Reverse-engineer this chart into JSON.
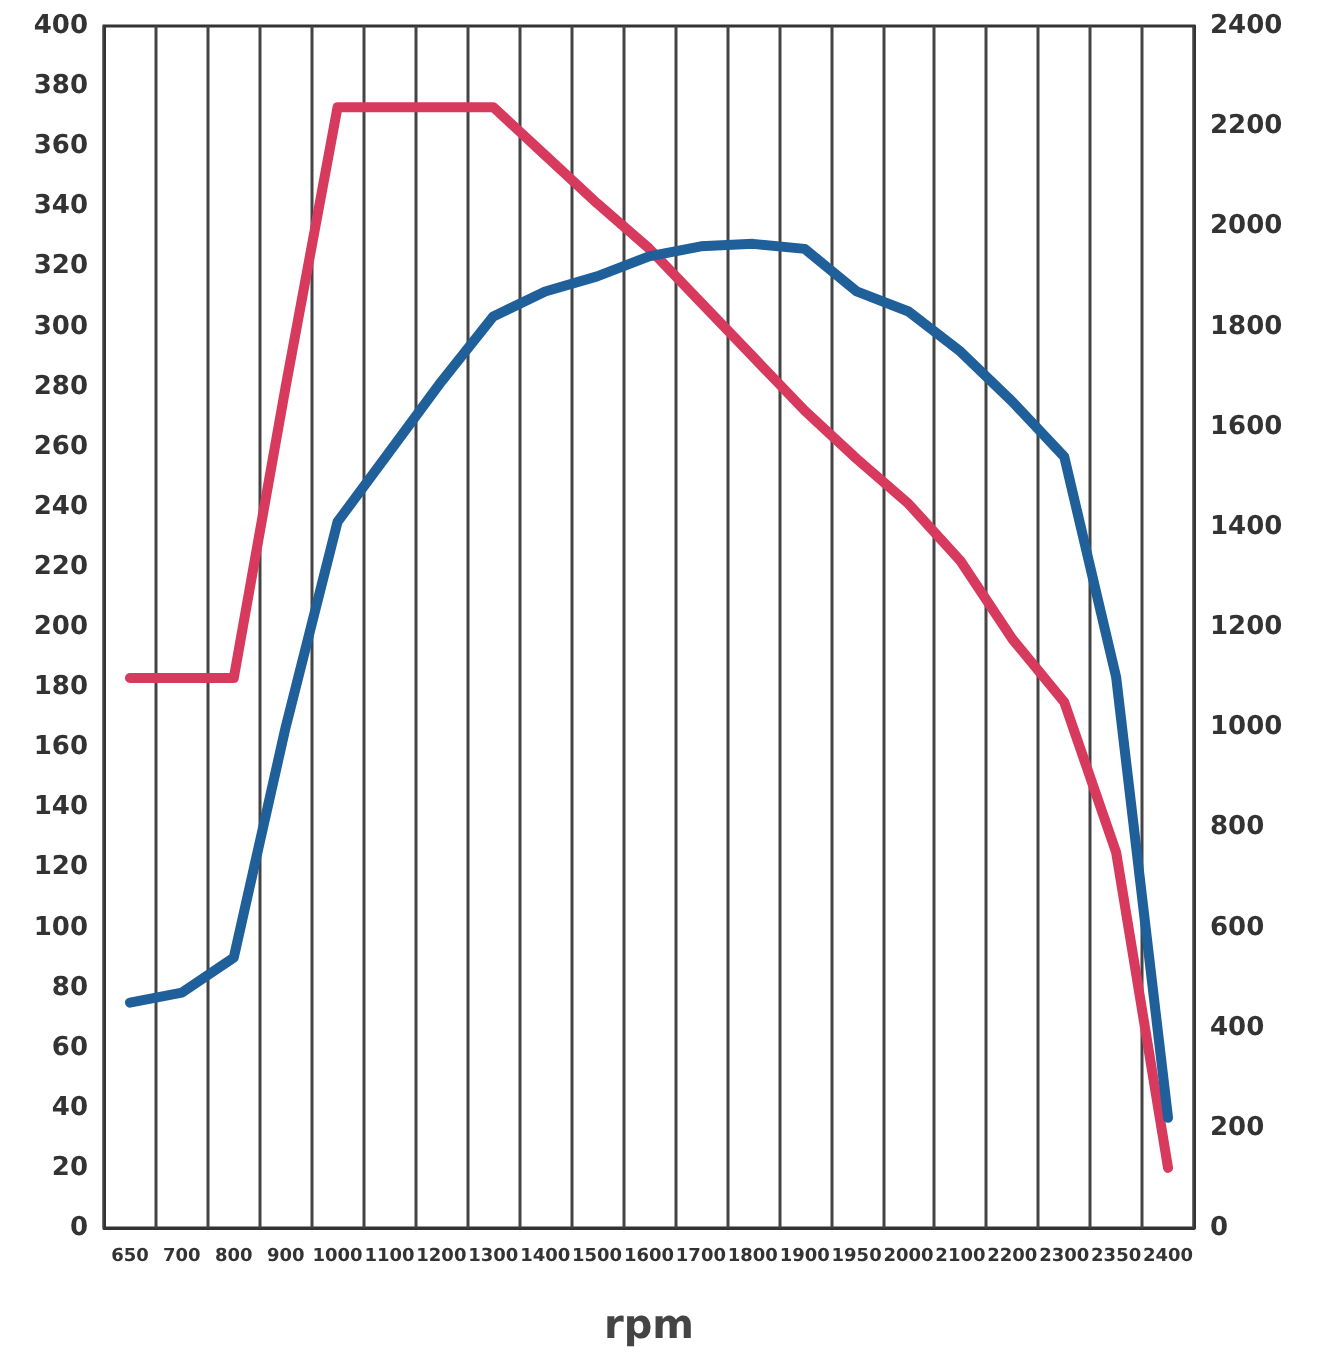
{
  "chart_data": {
    "type": "line",
    "xlabel": "rpm",
    "categories": [
      "650",
      "700",
      "800",
      "900",
      "1000",
      "1100",
      "1200",
      "1300",
      "1400",
      "1500",
      "1600",
      "1700",
      "1800",
      "1900",
      "1950",
      "2000",
      "2100",
      "2200",
      "2300",
      "2350",
      "2400"
    ],
    "series": [
      {
        "color": "#d83a5e",
        "values": [
          183,
          183,
          183,
          280,
          373,
          373,
          373,
          373,
          357,
          341,
          326,
          308,
          290,
          272,
          256,
          241,
          222,
          196,
          175,
          125,
          20
        ]
      },
      {
        "color": "#1f5f9a",
        "axis": "y2",
        "values": [
          450,
          470,
          540,
          1000,
          1410,
          1550,
          1690,
          1820,
          1870,
          1900,
          1940,
          1960,
          1965,
          1955,
          1870,
          1830,
          1750,
          1650,
          1540,
          1100,
          220
        ]
      }
    ],
    "ylim": [
      0,
      400
    ],
    "yticks": [
      0,
      20,
      40,
      60,
      80,
      100,
      120,
      140,
      160,
      180,
      200,
      220,
      240,
      260,
      280,
      300,
      320,
      340,
      360,
      380,
      400
    ],
    "y2lim": [
      0,
      2400
    ],
    "y2ticks": [
      0,
      200,
      400,
      600,
      800,
      1000,
      1200,
      1400,
      1600,
      1800,
      2000,
      2200,
      2400
    ],
    "grid": "x",
    "marker": "none",
    "line_style": "solid"
  }
}
